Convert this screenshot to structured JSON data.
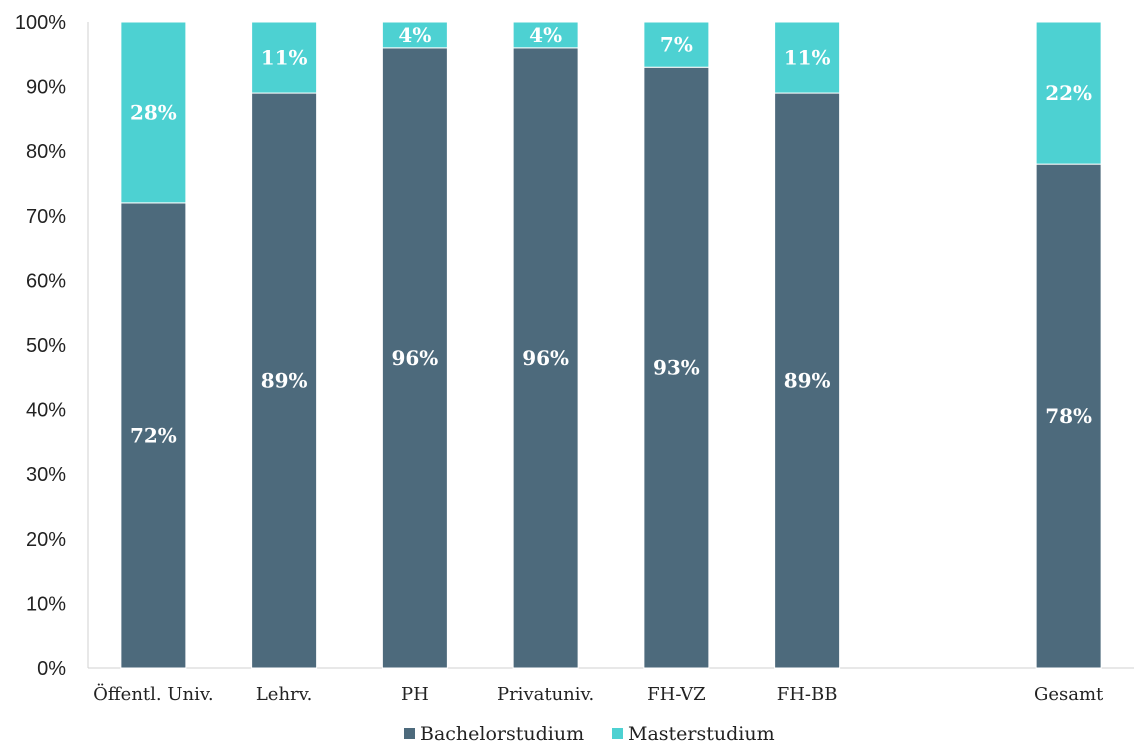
{
  "chart_data": {
    "type": "bar",
    "stacked": true,
    "categories": [
      "Öffentl. Univ.",
      "Lehrv.",
      "PH",
      "Privatuniv.",
      "FH-VZ",
      "FH-BB",
      "",
      "Gesamt"
    ],
    "series": [
      {
        "name": "Bachelorstudium",
        "color": "#4d6a7c",
        "values": [
          72,
          89,
          96,
          96,
          93,
          89,
          null,
          78
        ],
        "labels": [
          "72%",
          "89%",
          "96%",
          "96%",
          "93%",
          "89%",
          "",
          "78%"
        ]
      },
      {
        "name": "Masterstudium",
        "color": "#4dd1d2",
        "values": [
          28,
          11,
          4,
          4,
          7,
          11,
          null,
          22
        ],
        "labels": [
          "28%",
          "11%",
          "4%",
          "4%",
          "7%",
          "11%",
          "",
          "22%"
        ]
      }
    ],
    "yticks": [
      "0%",
      "10%",
      "20%",
      "30%",
      "40%",
      "50%",
      "60%",
      "70%",
      "80%",
      "90%",
      "100%"
    ],
    "ylim": [
      0,
      100
    ],
    "grid": false,
    "legend_position": "bottom"
  }
}
